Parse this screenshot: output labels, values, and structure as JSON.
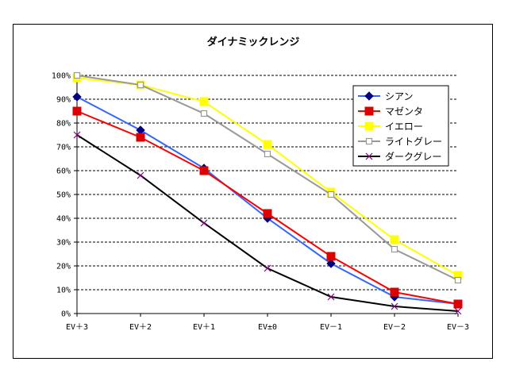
{
  "chart_data": {
    "type": "line",
    "title": "ダイナミックレンジ",
    "categories": [
      "EV＋3",
      "EV＋2",
      "EV＋1",
      "EV±0",
      "EV－1",
      "EV－2",
      "EV－3"
    ],
    "ylim": [
      0,
      100
    ],
    "yticks": [
      "0%",
      "10%",
      "20%",
      "30%",
      "40%",
      "50%",
      "60%",
      "70%",
      "80%",
      "90%",
      "100%"
    ],
    "grid": "horizontal dashed",
    "legend_position": "right",
    "series": [
      {
        "name": "シアン",
        "values": [
          91,
          77,
          61,
          40,
          21,
          7,
          4
        ],
        "line_color": "#3366ff",
        "marker_color": "#000080",
        "marker": "diamond"
      },
      {
        "name": "マゼンタ",
        "values": [
          85,
          74,
          60,
          42,
          24,
          9,
          4
        ],
        "line_color": "#ff0000",
        "marker_color": "#dd0000",
        "marker": "square"
      },
      {
        "name": "イエロー",
        "values": [
          99,
          96,
          89,
          71,
          51,
          31,
          16
        ],
        "line_color": "#ffff00",
        "marker_color": "#ffff00",
        "marker": "square"
      },
      {
        "name": "ライトグレー",
        "values": [
          100,
          96,
          84,
          67,
          50,
          27,
          14
        ],
        "line_color": "#999999",
        "marker_color": "#999999",
        "marker": "hollow-square"
      },
      {
        "name": "ダークグレー",
        "values": [
          75,
          58,
          38,
          19,
          7,
          3,
          1
        ],
        "line_color": "#000000",
        "marker_color": "#800080",
        "marker": "x"
      }
    ]
  }
}
